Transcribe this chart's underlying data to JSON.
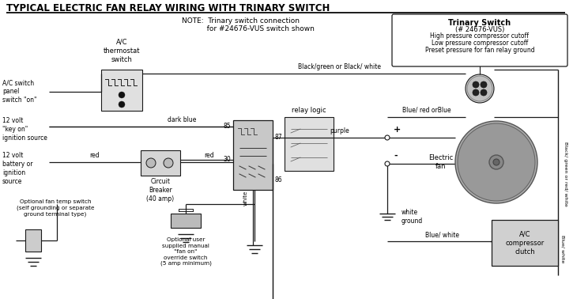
{
  "title": "TYPICAL ELECTRIC FAN RELAY WIRING WITH TRINARY SWITCH",
  "note_text": "NOTE:  Trinary switch connection\n           for #24676-VUS switch shown",
  "trinary_box_title": "Trinary Switch",
  "trinary_box_subtitle": "(# 24676-VUS)",
  "trinary_box_lines": [
    "High pressure compressor cutoff",
    "Low pressure compressor cutoff",
    "Preset pressure for fan relay ground"
  ],
  "labels": {
    "ac_switch": "A/C switch\npanel\nswitch \"on\"",
    "ac_therm": "A/C\nthermostat\nswitch",
    "v12_key": "12 volt\n\"key on\"\nignition source",
    "v12_bat": "12 volt\nbattery or\nignition\nsource",
    "circuit_breaker": "Circuit\nBreaker\n(40 amp)",
    "relay_logic": "relay logic",
    "electric_fan": "Electric\nfan",
    "optional_fan": "Optional fan temp switch\n(self grounding or separate\nground terminal type)",
    "override_switch": "Optional user\nsupplied manual\n\"fan on\"\noverride switch\n(5 amp minimum)",
    "white_ground": "white\nground",
    "blue_white": "Blue/ white",
    "black_green": "Black/green or Black/ white",
    "blue_red": "Blue/ red orBlue",
    "dark_blue": "dark blue",
    "red_label": "red",
    "purple": "purple",
    "white_label": "white",
    "ac_compressor": "A/C\ncompressor\nclutch",
    "right_text1": "Black/ green or red/ white",
    "right_text2": "Blue/ white"
  },
  "lc": "#1a1a1a",
  "fig_w": 7.25,
  "fig_h": 3.78,
  "dpi": 100
}
